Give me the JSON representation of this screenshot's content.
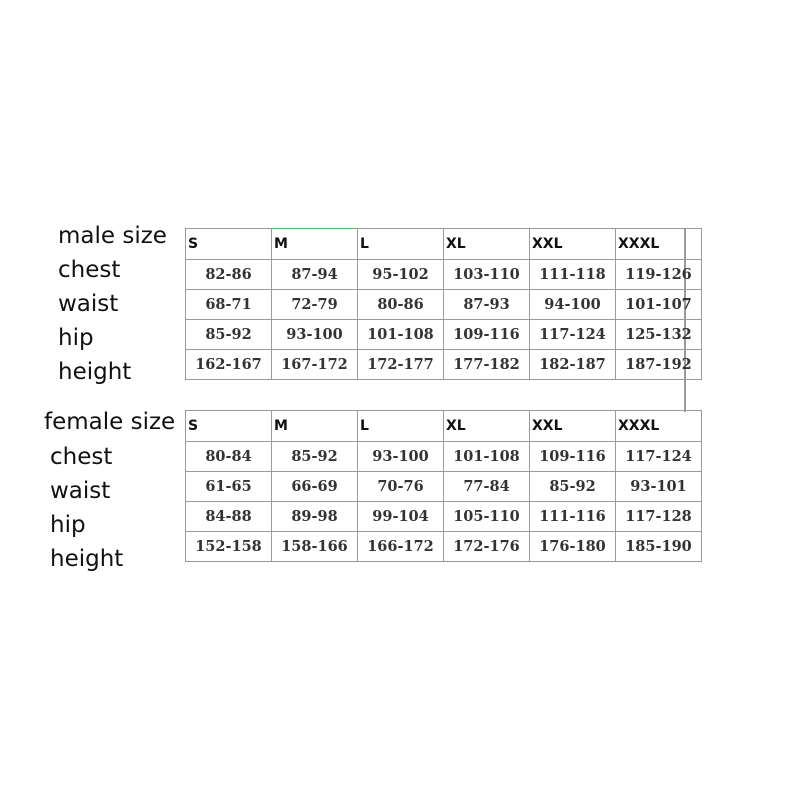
{
  "male": {
    "title": "male size",
    "row_labels": [
      "chest",
      "waist",
      "hip",
      "height"
    ],
    "sizes": [
      "S",
      "M",
      "L",
      "XL",
      "XXL",
      "XXXL"
    ],
    "rows": [
      [
        "82-86",
        "87-94",
        "95-102",
        "103-110",
        "111-118",
        "119-126"
      ],
      [
        "68-71",
        "72-79",
        "80-86",
        "87-93",
        "94-100",
        "101-107"
      ],
      [
        "85-92",
        "93-100",
        "101-108",
        "109-116",
        "117-124",
        "125-132"
      ],
      [
        "162-167",
        "167-172",
        "172-177",
        "177-182",
        "182-187",
        "187-192"
      ]
    ]
  },
  "female": {
    "title": "female size",
    "row_labels": [
      "chest",
      "waist",
      "hip",
      "height"
    ],
    "sizes": [
      "S",
      "M",
      "L",
      "XL",
      "XXL",
      "XXXL"
    ],
    "rows": [
      [
        "80-84",
        "85-92",
        "93-100",
        "101-108",
        "109-116",
        "117-124"
      ],
      [
        "61-65",
        "66-69",
        "70-76",
        "77-84",
        "85-92",
        "93-101"
      ],
      [
        "84-88",
        "89-98",
        "99-104",
        "105-110",
        "111-116",
        "117-128"
      ],
      [
        "152-158",
        "158-166",
        "166-172",
        "172-176",
        "176-180",
        "185-190"
      ]
    ]
  }
}
